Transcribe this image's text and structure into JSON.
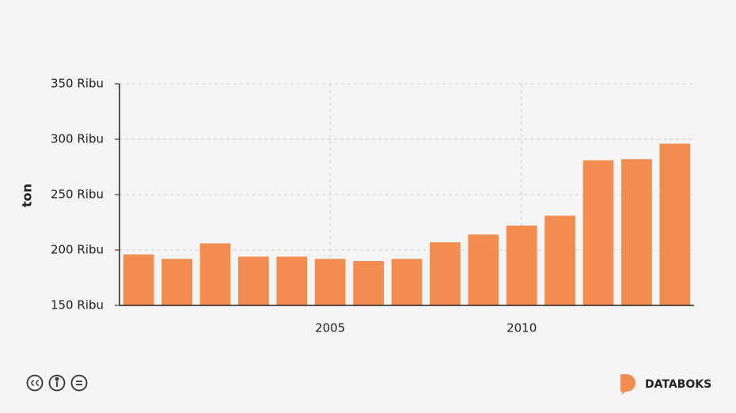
{
  "chart_data": {
    "type": "bar",
    "y_label": "ton",
    "x": [
      2000,
      2001,
      2002,
      2003,
      2004,
      2005,
      2006,
      2007,
      2008,
      2009,
      2010,
      2011,
      2012,
      2013,
      2014
    ],
    "values": [
      196000,
      192000,
      206000,
      194000,
      194000,
      192000,
      190000,
      192000,
      207000,
      214000,
      222000,
      231000,
      281000,
      282000,
      296000
    ],
    "color": "#f28c4f",
    "xlim": [
      1999.5,
      2014.5
    ],
    "xticks": [
      2005,
      2010
    ],
    "ylim": [
      150000,
      350000
    ],
    "yticks": [
      {
        "value": 150000,
        "label": "150 Ribu"
      },
      {
        "value": 200000,
        "label": "200 Ribu"
      },
      {
        "value": 250000,
        "label": "250 Ribu"
      },
      {
        "value": 300000,
        "label": "300 Ribu"
      },
      {
        "value": 350000,
        "label": "350 Ribu"
      }
    ],
    "grid": true
  },
  "branding": "DATABOKS"
}
